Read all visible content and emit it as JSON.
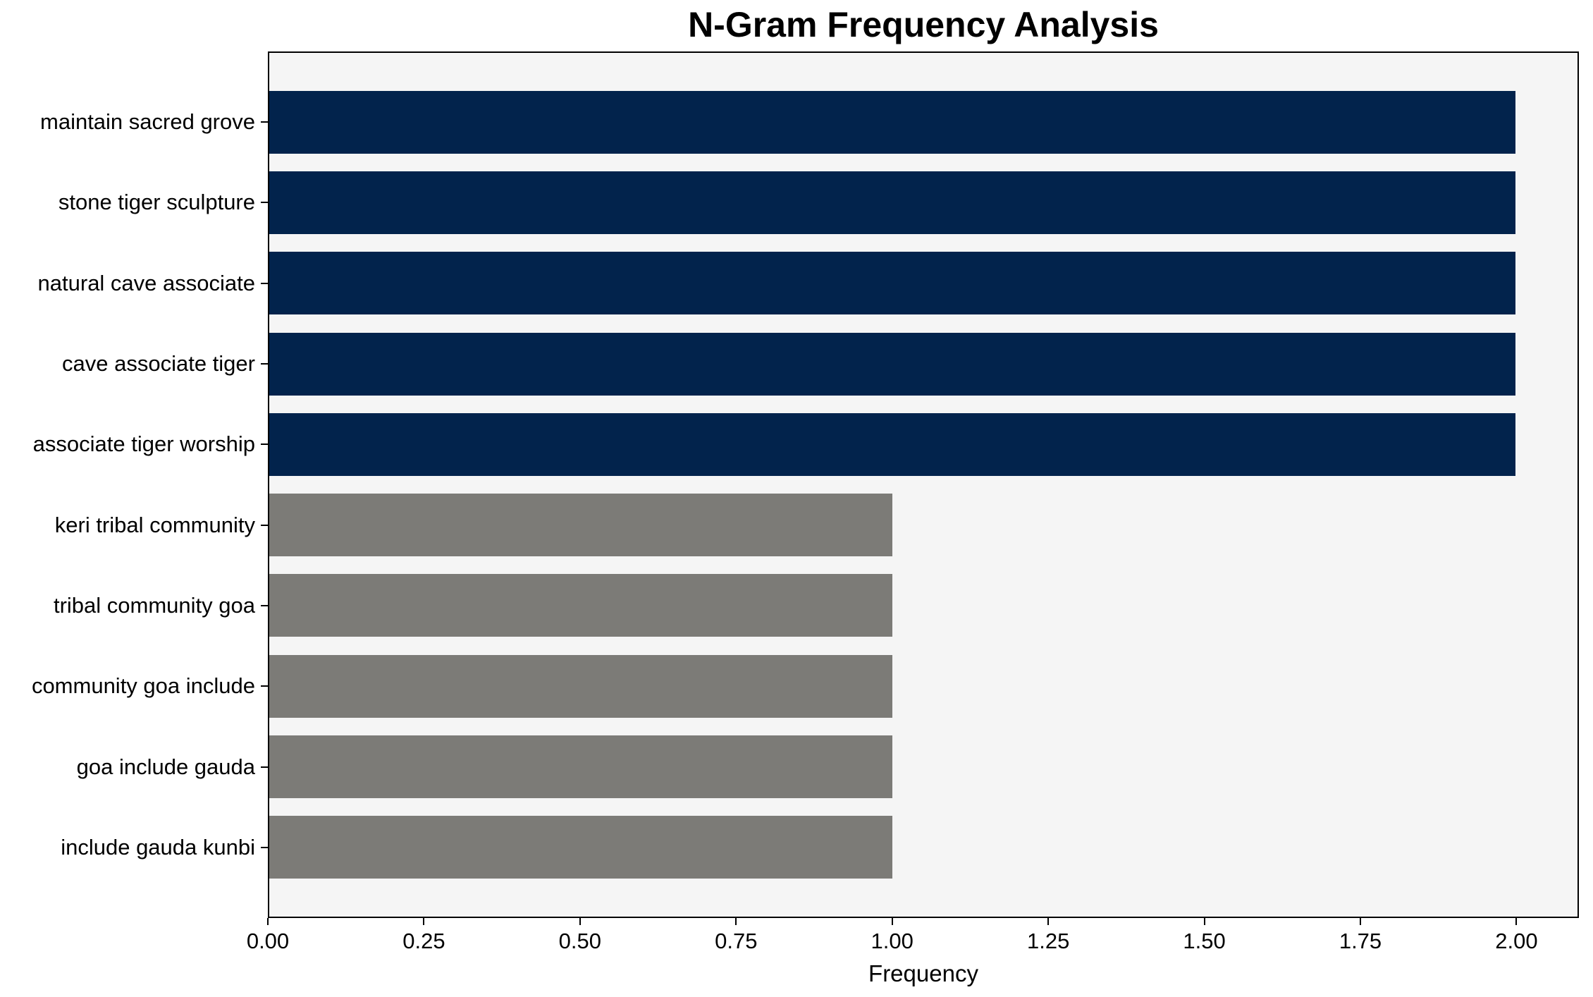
{
  "chart_data": {
    "type": "bar",
    "orientation": "horizontal",
    "title": "N-Gram Frequency Analysis",
    "xlabel": "Frequency",
    "ylabel": "",
    "categories": [
      "maintain sacred grove",
      "stone tiger sculpture",
      "natural cave associate",
      "cave associate tiger",
      "associate tiger worship",
      "keri tribal community",
      "tribal community goa",
      "community goa include",
      "goa include gauda",
      "include gauda kunbi"
    ],
    "values": [
      2,
      2,
      2,
      2,
      2,
      1,
      1,
      1,
      1,
      1
    ],
    "bar_colors": [
      "#02234c",
      "#02234c",
      "#02234c",
      "#02234c",
      "#02234c",
      "#7c7b77",
      "#7c7b77",
      "#7c7b77",
      "#7c7b77",
      "#7c7b77"
    ],
    "xlim": [
      0,
      2.1
    ],
    "xticks": [
      0.0,
      0.25,
      0.5,
      0.75,
      1.0,
      1.25,
      1.5,
      1.75,
      2.0
    ],
    "xtick_labels": [
      "0.00",
      "0.25",
      "0.50",
      "0.75",
      "1.00",
      "1.25",
      "1.50",
      "1.75",
      "2.00"
    ],
    "legend": null,
    "grid": false,
    "plot_background": "#f5f5f5",
    "figure_background": "#ffffff",
    "text_color": "#000000"
  }
}
